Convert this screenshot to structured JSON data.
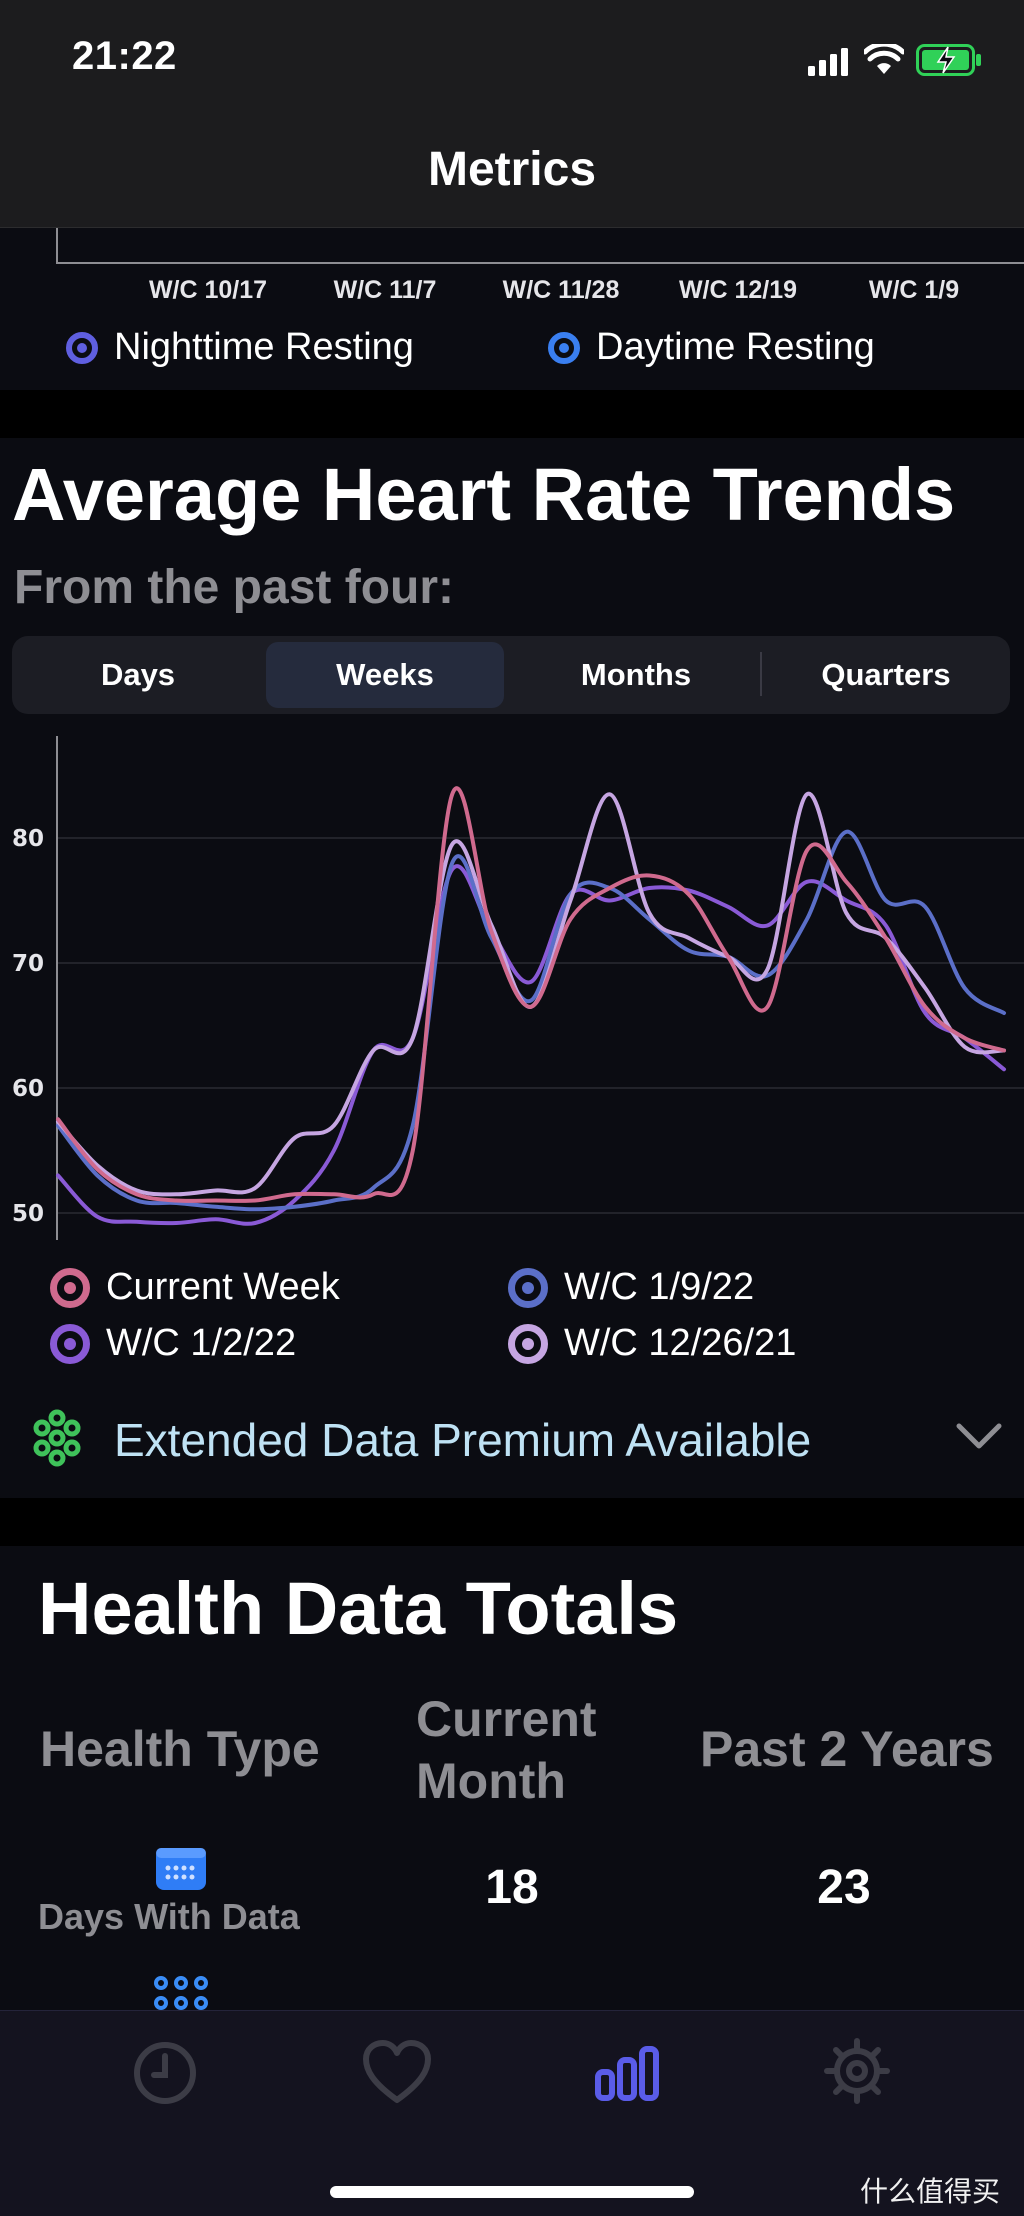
{
  "status_bar": {
    "time": "21:22"
  },
  "nav": {
    "title": "Metrics"
  },
  "resting_chart": {
    "x_ticks": [
      "W/C 10/17",
      "W/C 11/7",
      "W/C 11/28",
      "W/C 12/19",
      "W/C 1/9"
    ],
    "legend": [
      {
        "label": "Nighttime Resting",
        "color": "#5f5fe0"
      },
      {
        "label": "Daytime Resting",
        "color": "#3a7ff0"
      }
    ]
  },
  "trends": {
    "title": "Average Heart Rate Trends",
    "subtitle": "From the past four:",
    "segments": [
      "Days",
      "Weeks",
      "Months",
      "Quarters"
    ],
    "selected_segment": "Weeks",
    "legend": [
      {
        "label": "Current Week",
        "color": "#d06a8e"
      },
      {
        "label": "W/C 1/9/22",
        "color": "#5b6fc8"
      },
      {
        "label": "W/C 1/2/22",
        "color": "#8a5ad6"
      },
      {
        "label": "W/C 12/26/21",
        "color": "#c6a6e2"
      }
    ],
    "premium_label": "Extended Data Premium Available"
  },
  "chart_data": {
    "type": "line",
    "title": "",
    "xlabel": "",
    "ylabel": "",
    "y_ticks": [
      "50",
      "60",
      "70",
      "80"
    ],
    "ylim": [
      48,
      88
    ],
    "xlim": [
      0,
      24
    ],
    "x": [
      0,
      1,
      2,
      3,
      4,
      5,
      6,
      7,
      8,
      9,
      10,
      11,
      12,
      13,
      14,
      15,
      16,
      17,
      18,
      19,
      20,
      21,
      22,
      23,
      24
    ],
    "series": [
      {
        "name": "Current Week",
        "color": "#d06a8e",
        "values": [
          57.5,
          53.5,
          51.5,
          51,
          51,
          51,
          51.5,
          51.5,
          51.5,
          55,
          83.5,
          72.5,
          66.5,
          73.5,
          76,
          77,
          75.5,
          70.5,
          66.5,
          79,
          76.5,
          72,
          66.5,
          64,
          63
        ]
      },
      {
        "name": "W/C 1/9/22",
        "color": "#5b6fc8",
        "values": [
          57,
          53,
          51,
          50.8,
          50.5,
          50.3,
          50.5,
          51,
          52,
          57,
          78,
          72,
          67,
          75.5,
          76,
          73.5,
          71,
          70.5,
          69,
          73.5,
          80.5,
          75,
          74.5,
          68,
          66
        ]
      },
      {
        "name": "W/C 1/2/22",
        "color": "#8a5ad6",
        "values": [
          53,
          49.7,
          49.3,
          49.2,
          49.5,
          49.2,
          51,
          55,
          63,
          64,
          77.5,
          72.5,
          68.5,
          75.5,
          75,
          76,
          75.8,
          74.5,
          73,
          76.5,
          75,
          73,
          66,
          64,
          61.5
        ]
      },
      {
        "name": "W/C 12/26/21",
        "color": "#c6a6e2",
        "values": [
          57.3,
          53.8,
          51.8,
          51.5,
          51.8,
          52,
          56,
          57,
          63,
          64,
          79.5,
          73,
          66.5,
          75,
          83.5,
          74,
          72,
          70.5,
          69.5,
          83.5,
          74,
          72,
          68,
          63.3,
          63
        ]
      }
    ]
  },
  "health_totals": {
    "title": "Health Data Totals",
    "headers": [
      "Health Type",
      "Current Month",
      "Past 2 Years"
    ],
    "header_lines": {
      "current_month_1": "Current",
      "current_month_2": "Month"
    },
    "rows": [
      {
        "label": "Days With Data",
        "current_month": "18",
        "past_2_years": "23"
      }
    ]
  },
  "tab_bar": {
    "tabs": [
      "clock-icon",
      "heart-icon",
      "bar-chart-icon",
      "gear-icon"
    ],
    "selected": "bar-chart-icon",
    "active_color": "#5a5ce8",
    "inactive_color": "#3c3c46"
  },
  "watermark": "什么值得买"
}
